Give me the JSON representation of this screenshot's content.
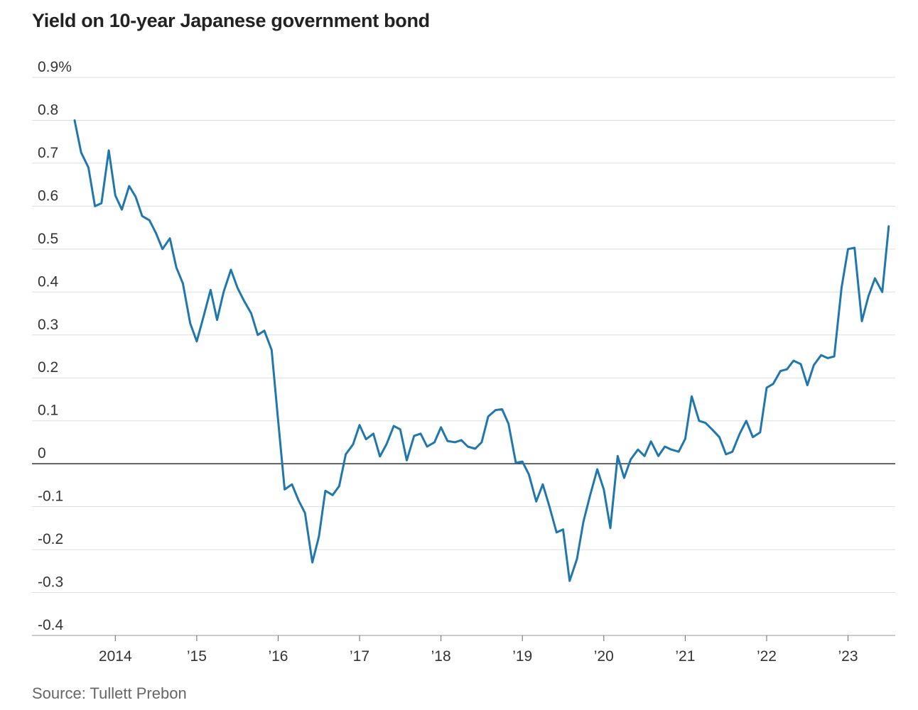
{
  "chart_data": {
    "type": "line",
    "title": "Yield on 10-year Japanese government bond",
    "source": "Source: Tullett Prebon",
    "xlabel": "",
    "ylabel": "",
    "y_unit_suffix": "%",
    "ylim": [
      -0.4,
      0.9
    ],
    "xlim": [
      2013.5,
      2023.58
    ],
    "y_ticks": [
      {
        "value": 0.9,
        "label": "0.9%"
      },
      {
        "value": 0.8,
        "label": "0.8"
      },
      {
        "value": 0.7,
        "label": "0.7"
      },
      {
        "value": 0.6,
        "label": "0.6"
      },
      {
        "value": 0.5,
        "label": "0.5"
      },
      {
        "value": 0.4,
        "label": "0.4"
      },
      {
        "value": 0.3,
        "label": "0.3"
      },
      {
        "value": 0.2,
        "label": "0.2"
      },
      {
        "value": 0.1,
        "label": "0.1"
      },
      {
        "value": 0,
        "label": "0"
      },
      {
        "value": -0.1,
        "label": "-0.1"
      },
      {
        "value": -0.2,
        "label": "-0.2"
      },
      {
        "value": -0.3,
        "label": "-0.3"
      },
      {
        "value": -0.4,
        "label": "-0.4"
      }
    ],
    "x_ticks": [
      {
        "value": 2014,
        "label": "2014"
      },
      {
        "value": 2015,
        "label": "’15"
      },
      {
        "value": 2016,
        "label": "’16"
      },
      {
        "value": 2017,
        "label": "’17"
      },
      {
        "value": 2018,
        "label": "’18"
      },
      {
        "value": 2019,
        "label": "’19"
      },
      {
        "value": 2020,
        "label": "’20"
      },
      {
        "value": 2021,
        "label": "’21"
      },
      {
        "value": 2022,
        "label": "’22"
      },
      {
        "value": 2023,
        "label": "’23"
      }
    ],
    "colors": {
      "line": "#1f77ad",
      "grid": "#dddddd",
      "zero": "#333333",
      "axis": "#999999"
    },
    "series": [
      {
        "name": "Yield on 10-year Japanese government bond",
        "points": [
          [
            2013.5,
            0.8
          ],
          [
            2013.58,
            0.725
          ],
          [
            2013.67,
            0.69
          ],
          [
            2013.75,
            0.6
          ],
          [
            2013.83,
            0.607
          ],
          [
            2013.92,
            0.73
          ],
          [
            2014.0,
            0.625
          ],
          [
            2014.08,
            0.592
          ],
          [
            2014.17,
            0.647
          ],
          [
            2014.25,
            0.622
          ],
          [
            2014.33,
            0.577
          ],
          [
            2014.42,
            0.567
          ],
          [
            2014.5,
            0.537
          ],
          [
            2014.58,
            0.5
          ],
          [
            2014.67,
            0.525
          ],
          [
            2014.75,
            0.457
          ],
          [
            2014.83,
            0.42
          ],
          [
            2014.92,
            0.327
          ],
          [
            2015.0,
            0.285
          ],
          [
            2015.08,
            0.34
          ],
          [
            2015.17,
            0.405
          ],
          [
            2015.25,
            0.335
          ],
          [
            2015.33,
            0.4
          ],
          [
            2015.42,
            0.452
          ],
          [
            2015.5,
            0.41
          ],
          [
            2015.58,
            0.38
          ],
          [
            2015.67,
            0.35
          ],
          [
            2015.75,
            0.3
          ],
          [
            2015.83,
            0.31
          ],
          [
            2015.92,
            0.265
          ],
          [
            2016.0,
            0.1
          ],
          [
            2016.08,
            -0.06
          ],
          [
            2016.17,
            -0.048
          ],
          [
            2016.25,
            -0.085
          ],
          [
            2016.33,
            -0.115
          ],
          [
            2016.42,
            -0.23
          ],
          [
            2016.5,
            -0.17
          ],
          [
            2016.58,
            -0.063
          ],
          [
            2016.67,
            -0.073
          ],
          [
            2016.75,
            -0.052
          ],
          [
            2016.83,
            0.022
          ],
          [
            2016.92,
            0.045
          ],
          [
            2017.0,
            0.09
          ],
          [
            2017.08,
            0.057
          ],
          [
            2017.17,
            0.07
          ],
          [
            2017.25,
            0.017
          ],
          [
            2017.33,
            0.045
          ],
          [
            2017.42,
            0.088
          ],
          [
            2017.5,
            0.08
          ],
          [
            2017.58,
            0.008
          ],
          [
            2017.67,
            0.065
          ],
          [
            2017.75,
            0.07
          ],
          [
            2017.83,
            0.04
          ],
          [
            2017.92,
            0.05
          ],
          [
            2018.0,
            0.085
          ],
          [
            2018.08,
            0.053
          ],
          [
            2018.17,
            0.05
          ],
          [
            2018.25,
            0.055
          ],
          [
            2018.33,
            0.04
          ],
          [
            2018.42,
            0.035
          ],
          [
            2018.5,
            0.05
          ],
          [
            2018.58,
            0.11
          ],
          [
            2018.67,
            0.125
          ],
          [
            2018.75,
            0.127
          ],
          [
            2018.83,
            0.093
          ],
          [
            2018.92,
            0.002
          ],
          [
            2019.0,
            0.005
          ],
          [
            2019.08,
            -0.025
          ],
          [
            2019.17,
            -0.088
          ],
          [
            2019.25,
            -0.048
          ],
          [
            2019.33,
            -0.098
          ],
          [
            2019.42,
            -0.16
          ],
          [
            2019.5,
            -0.153
          ],
          [
            2019.58,
            -0.273
          ],
          [
            2019.67,
            -0.222
          ],
          [
            2019.75,
            -0.135
          ],
          [
            2019.83,
            -0.075
          ],
          [
            2019.92,
            -0.013
          ],
          [
            2020.0,
            -0.06
          ],
          [
            2020.08,
            -0.15
          ],
          [
            2020.17,
            0.018
          ],
          [
            2020.25,
            -0.033
          ],
          [
            2020.33,
            0.01
          ],
          [
            2020.42,
            0.033
          ],
          [
            2020.5,
            0.018
          ],
          [
            2020.58,
            0.052
          ],
          [
            2020.67,
            0.018
          ],
          [
            2020.75,
            0.04
          ],
          [
            2020.83,
            0.033
          ],
          [
            2020.92,
            0.028
          ],
          [
            2021.0,
            0.058
          ],
          [
            2021.08,
            0.157
          ],
          [
            2021.17,
            0.1
          ],
          [
            2021.25,
            0.095
          ],
          [
            2021.33,
            0.08
          ],
          [
            2021.42,
            0.062
          ],
          [
            2021.5,
            0.022
          ],
          [
            2021.58,
            0.028
          ],
          [
            2021.67,
            0.07
          ],
          [
            2021.75,
            0.1
          ],
          [
            2021.83,
            0.062
          ],
          [
            2021.92,
            0.073
          ],
          [
            2022.0,
            0.177
          ],
          [
            2022.08,
            0.186
          ],
          [
            2022.17,
            0.216
          ],
          [
            2022.25,
            0.22
          ],
          [
            2022.33,
            0.24
          ],
          [
            2022.42,
            0.232
          ],
          [
            2022.5,
            0.183
          ],
          [
            2022.58,
            0.23
          ],
          [
            2022.67,
            0.253
          ],
          [
            2022.75,
            0.246
          ],
          [
            2022.83,
            0.25
          ],
          [
            2022.92,
            0.41
          ],
          [
            2023.0,
            0.5
          ],
          [
            2023.08,
            0.503
          ],
          [
            2023.17,
            0.332
          ],
          [
            2023.25,
            0.39
          ],
          [
            2023.33,
            0.432
          ],
          [
            2023.42,
            0.4
          ],
          [
            2023.5,
            0.553
          ]
        ]
      }
    ]
  }
}
